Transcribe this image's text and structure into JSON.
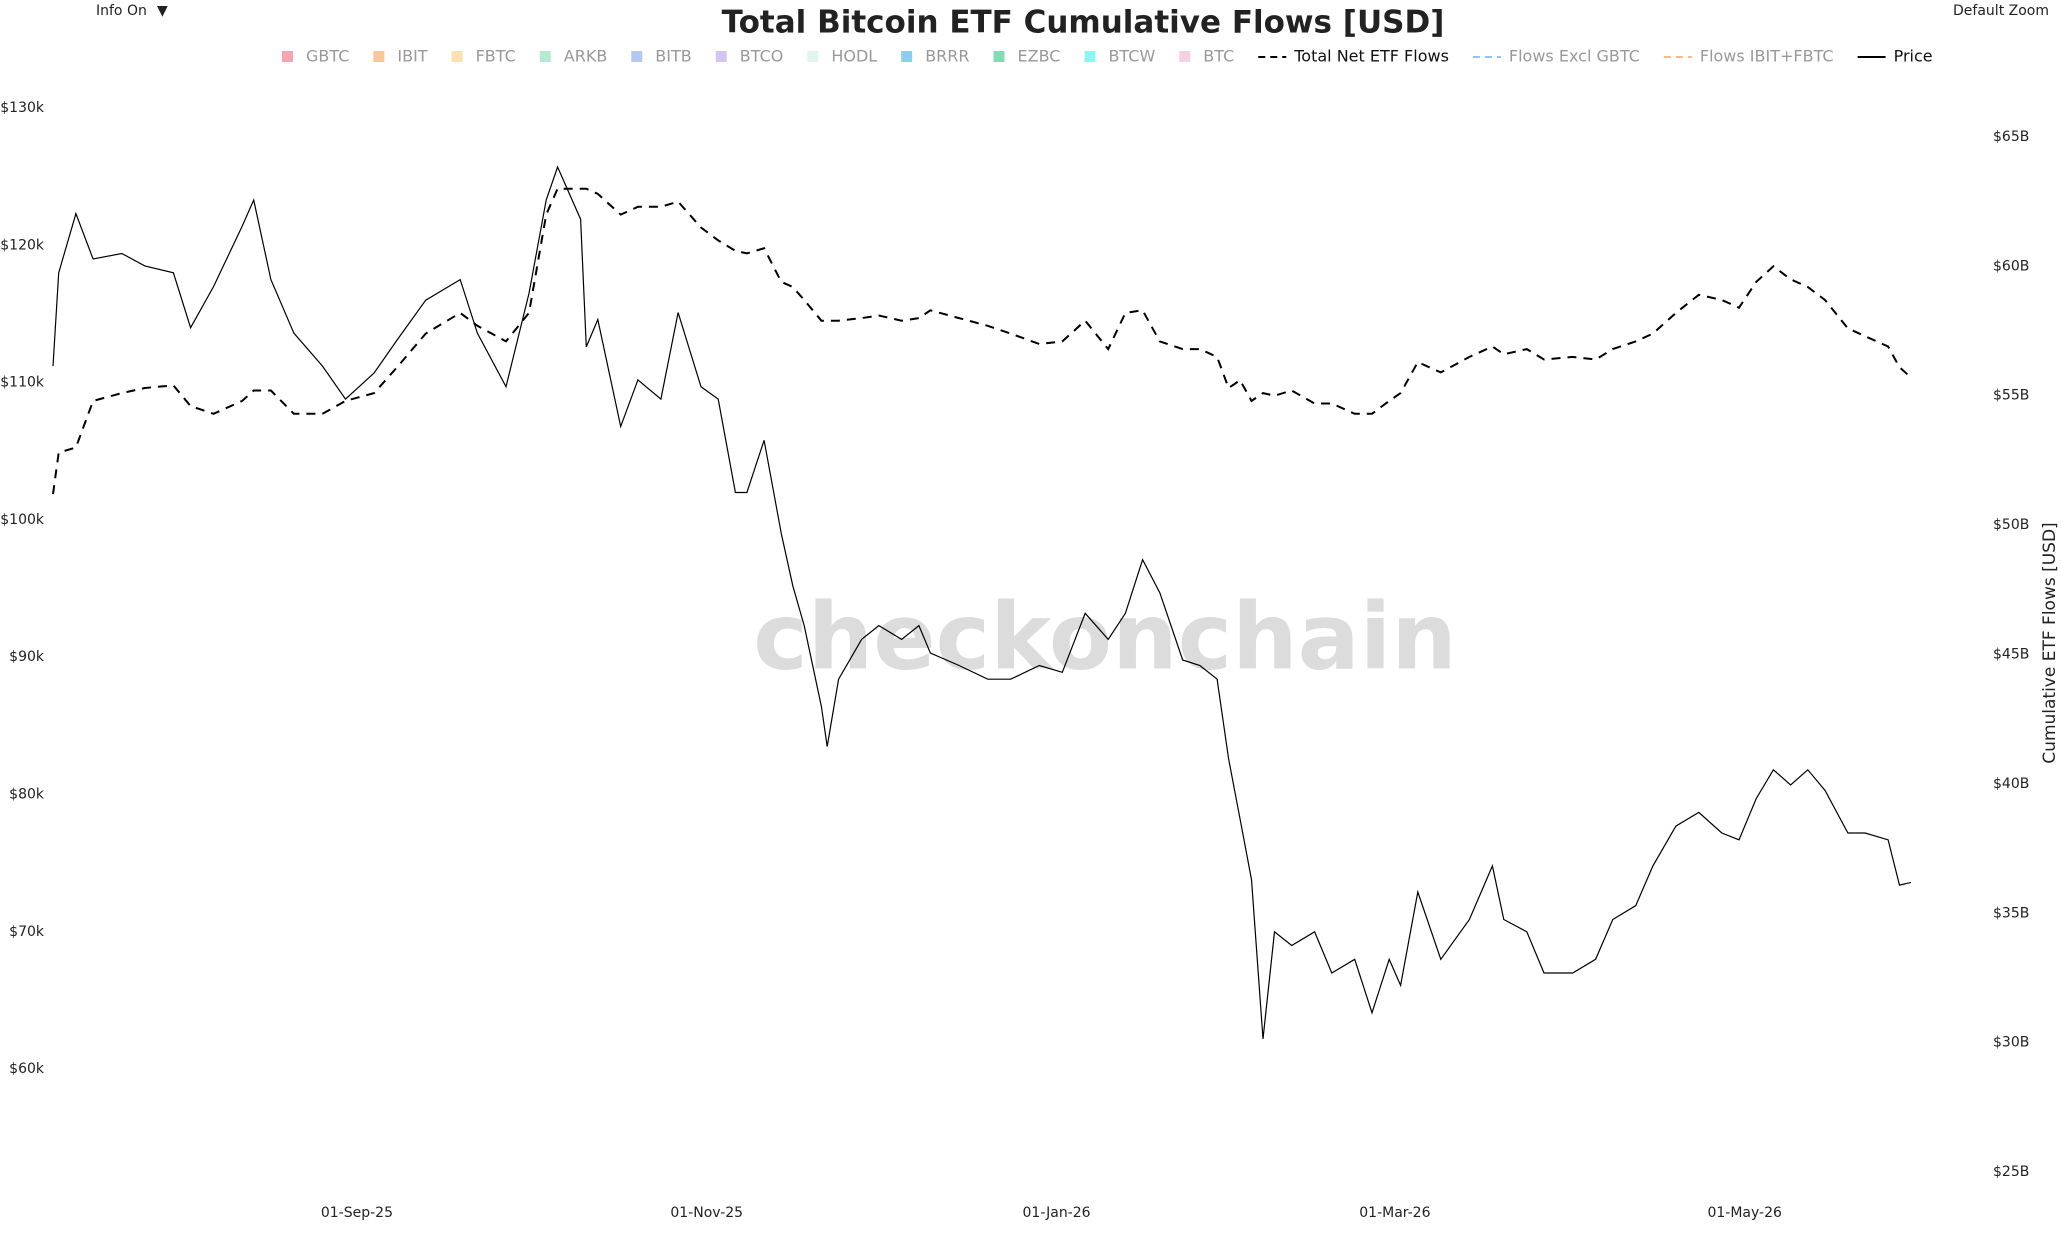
{
  "chart_data": {
    "type": "line",
    "title": "Total Bitcoin ETF Cumulative Flows [USD]",
    "top_left_control": "Info On",
    "top_left_arrow": "▼",
    "top_right_control": "Default Zoom",
    "watermark": "checkonchain",
    "y2label": "Cumulative ETF Flows [USD]",
    "x": [
      "2025-07-10",
      "2025-07-11",
      "2025-07-14",
      "2025-07-17",
      "2025-07-22",
      "2025-07-26",
      "2025-07-31",
      "2025-08-03",
      "2025-08-07",
      "2025-08-12",
      "2025-08-14",
      "2025-08-17",
      "2025-08-21",
      "2025-08-26",
      "2025-08-30",
      "2025-09-04",
      "2025-09-08",
      "2025-09-13",
      "2025-09-19",
      "2025-09-22",
      "2025-09-27",
      "2025-10-01",
      "2025-10-04",
      "2025-10-06",
      "2025-10-10",
      "2025-10-11",
      "2025-10-13",
      "2025-10-17",
      "2025-10-20",
      "2025-10-24",
      "2025-10-27",
      "2025-10-31",
      "2025-11-03",
      "2025-11-06",
      "2025-11-08",
      "2025-11-11",
      "2025-11-14",
      "2025-11-16",
      "2025-11-18",
      "2025-11-21",
      "2025-11-22",
      "2025-11-24",
      "2025-11-28",
      "2025-12-01",
      "2025-12-05",
      "2025-12-08",
      "2025-12-10",
      "2025-12-15",
      "2025-12-20",
      "2025-12-24",
      "2025-12-29",
      "2026-01-02",
      "2026-01-06",
      "2026-01-10",
      "2026-01-13",
      "2026-01-16",
      "2026-01-19",
      "2026-01-23",
      "2026-01-26",
      "2026-01-29",
      "2026-01-31",
      "2026-02-02",
      "2026-02-04",
      "2026-02-06",
      "2026-02-08",
      "2026-02-11",
      "2026-02-15",
      "2026-02-18",
      "2026-02-22",
      "2026-02-25",
      "2026-02-28",
      "2026-03-02",
      "2026-03-05",
      "2026-03-09",
      "2026-03-14",
      "2026-03-18",
      "2026-03-20",
      "2026-03-24",
      "2026-03-27",
      "2026-04-01",
      "2026-04-05",
      "2026-04-08",
      "2026-04-12",
      "2026-04-15",
      "2026-04-19",
      "2026-04-23",
      "2026-04-27",
      "2026-04-30",
      "2026-05-03",
      "2026-05-06",
      "2026-05-09",
      "2026-05-12",
      "2026-05-15",
      "2026-05-19",
      "2026-05-22",
      "2026-05-26",
      "2026-05-28",
      "2026-05-30"
    ],
    "xlim": [
      "2025-07-10",
      "2026-05-30"
    ],
    "xticks": [
      {
        "value": "2025-09-01",
        "label": "01-Sep-25"
      },
      {
        "value": "2025-11-01",
        "label": "01-Nov-25"
      },
      {
        "value": "2026-01-01",
        "label": "01-Jan-26"
      },
      {
        "value": "2026-03-01",
        "label": "01-Mar-26"
      },
      {
        "value": "2026-05-01",
        "label": "01-May-26"
      }
    ],
    "ylim": [
      51560,
      132040
    ],
    "yticks": [
      {
        "value": 60000,
        "label": "$60k"
      },
      {
        "value": 70000,
        "label": "$70k"
      },
      {
        "value": 80000,
        "label": "$80k"
      },
      {
        "value": 90000,
        "label": "$90k"
      },
      {
        "value": 100000,
        "label": "$100k"
      },
      {
        "value": 110000,
        "label": "$110k"
      },
      {
        "value": 120000,
        "label": "$120k"
      },
      {
        "value": 130000,
        "label": "$130k"
      }
    ],
    "y2lim": [
      24500000000,
      67200000000
    ],
    "y2ticks": [
      {
        "value": 25000000000,
        "label": "$25B"
      },
      {
        "value": 30000000000,
        "label": "$30B"
      },
      {
        "value": 35000000000,
        "label": "$35B"
      },
      {
        "value": 40000000000,
        "label": "$40B"
      },
      {
        "value": 45000000000,
        "label": "$45B"
      },
      {
        "value": 50000000000,
        "label": "$50B"
      },
      {
        "value": 55000000000,
        "label": "$55B"
      },
      {
        "value": 60000000000,
        "label": "$60B"
      },
      {
        "value": 65000000000,
        "label": "$65B"
      }
    ],
    "grid": false,
    "series": [
      {
        "name": "GBTC",
        "color": "#f4a5b0",
        "visible": false,
        "style": "box"
      },
      {
        "name": "IBIT",
        "color": "#fbc79a",
        "visible": false,
        "style": "box"
      },
      {
        "name": "FBTC",
        "color": "#fde1b0",
        "visible": false,
        "style": "box"
      },
      {
        "name": "ARKB",
        "color": "#b5ead0",
        "visible": false,
        "style": "box"
      },
      {
        "name": "BITB",
        "color": "#b4c8f5",
        "visible": false,
        "style": "box"
      },
      {
        "name": "BTCO",
        "color": "#d2c4f3",
        "visible": false,
        "style": "box"
      },
      {
        "name": "HODL",
        "color": "#e0f5ee",
        "visible": false,
        "style": "box"
      },
      {
        "name": "BRRR",
        "color": "#8ad0ee",
        "visible": false,
        "style": "box"
      },
      {
        "name": "EZBC",
        "color": "#86d9b5",
        "visible": false,
        "style": "box"
      },
      {
        "name": "BTCW",
        "color": "#8ef5f5",
        "visible": false,
        "style": "box"
      },
      {
        "name": "BTC",
        "color": "#f8cfe0",
        "visible": false,
        "style": "box"
      },
      {
        "name": "Total Net ETF Flows",
        "color": "#000000",
        "visible": true,
        "style": "dash",
        "axis": "y2",
        "values": [
          51200000000,
          52800000000,
          53000000000,
          54800000000,
          55100000000,
          55300000000,
          55400000000,
          54600000000,
          54300000000,
          54800000000,
          55200000000,
          55200000000,
          54300000000,
          54300000000,
          54800000000,
          55100000000,
          56100000000,
          57400000000,
          58200000000,
          57700000000,
          57100000000,
          58200000000,
          62000000000,
          63000000000,
          63000000000,
          63000000000,
          62800000000,
          62000000000,
          62300000000,
          62300000000,
          62500000000,
          61500000000,
          61000000000,
          60600000000,
          60500000000,
          60700000000,
          59400000000,
          59200000000,
          58700000000,
          57900000000,
          57900000000,
          57900000000,
          58000000000,
          58100000000,
          57900000000,
          58000000000,
          58300000000,
          58000000000,
          57700000000,
          57400000000,
          57000000000,
          57100000000,
          57900000000,
          56800000000,
          58200000000,
          58300000000,
          57100000000,
          56800000000,
          56800000000,
          56500000000,
          55300000000,
          55600000000,
          54800000000,
          55100000000,
          55000000000,
          55200000000,
          54700000000,
          54700000000,
          54300000000,
          54300000000,
          54800000000,
          55100000000,
          56300000000,
          55900000000,
          56500000000,
          56900000000,
          56600000000,
          56800000000,
          56400000000,
          56500000000,
          56400000000,
          56800000000,
          57100000000,
          57400000000,
          58200000000,
          58900000000,
          58700000000,
          58400000000,
          59400000000,
          60000000000,
          59500000000,
          59200000000,
          58700000000,
          57600000000,
          57300000000,
          56900000000,
          56100000000,
          55700000000
        ]
      },
      {
        "name": "Flows Excl GBTC",
        "color": "#8ec5f0",
        "visible": false,
        "style": "dash"
      },
      {
        "name": "Flows IBIT+FBTC",
        "color": "#fbb98a",
        "visible": false,
        "style": "dash"
      },
      {
        "name": "Price",
        "color": "#000000",
        "visible": true,
        "style": "line",
        "values": [
          111200,
          118000,
          122300,
          119000,
          119400,
          118500,
          118000,
          114000,
          117000,
          121400,
          123300,
          117500,
          113600,
          111200,
          108800,
          110700,
          113100,
          116000,
          117500,
          113600,
          109700,
          116500,
          123300,
          125700,
          121900,
          112600,
          114600,
          106800,
          110200,
          108800,
          115100,
          109700,
          108800,
          102000,
          102000,
          105800,
          99000,
          95200,
          92300,
          86400,
          83500,
          88400,
          91300,
          92300,
          91300,
          92300,
          90300,
          89400,
          88400,
          88400,
          89400,
          88900,
          93200,
          91300,
          93200,
          97100,
          94700,
          89800,
          89400,
          88400,
          82600,
          78200,
          73800,
          62200,
          70000,
          69000,
          70000,
          67000,
          68000,
          64100,
          68000,
          66100,
          72900,
          68000,
          70900,
          74800,
          70900,
          70000,
          67000,
          67000,
          68000,
          70900,
          71900,
          74800,
          77700,
          78700,
          77200,
          76700,
          79700,
          81800,
          80700,
          81800,
          80300,
          77200,
          77200,
          76700,
          73400,
          73600
        ]
      }
    ]
  }
}
